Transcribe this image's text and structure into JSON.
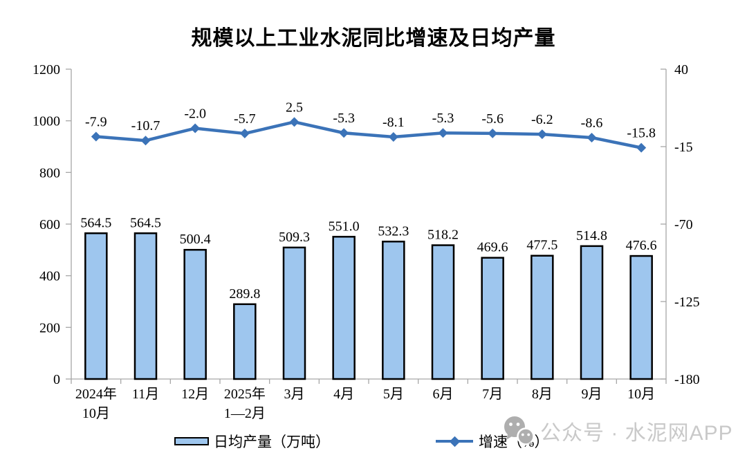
{
  "title": "规模以上工业水泥同比增速及日均产量",
  "chart_data": {
    "type": "combo",
    "title": "规模以上工业水泥同比增速及日均产量",
    "categories": [
      "2024年\n10月",
      "11月",
      "12月",
      "2025年\n1—2月",
      "3月",
      "4月",
      "5月",
      "6月",
      "7月",
      "8月",
      "9月",
      "10月"
    ],
    "series": [
      {
        "name": "日均产量（万吨）",
        "type": "bar",
        "axis": "left",
        "values": [
          564.5,
          564.5,
          500.4,
          289.8,
          509.3,
          551.0,
          532.3,
          518.2,
          469.6,
          477.5,
          514.8,
          476.6
        ],
        "fill": "#9EC6EE",
        "stroke": "#000000"
      },
      {
        "name": "增速（%）",
        "type": "line",
        "axis": "right",
        "values": [
          -7.9,
          -10.7,
          -2.0,
          -5.7,
          2.5,
          -5.3,
          -8.1,
          -5.3,
          -5.6,
          -6.2,
          -8.6,
          -15.8
        ],
        "color": "#3B73B8",
        "marker": "diamond"
      }
    ],
    "left_axis": {
      "min": 0,
      "max": 1200,
      "ticks": [
        0,
        200,
        400,
        600,
        800,
        1000,
        1200
      ]
    },
    "right_axis": {
      "min": -180,
      "max": 40,
      "ticks": [
        40,
        -15,
        -70,
        -125,
        -180
      ]
    },
    "grid": false,
    "data_labels": true,
    "legend_position": "bottom"
  },
  "legend": {
    "bar_label": "日均产量（万吨）",
    "line_label": "增速（%）"
  },
  "watermark": {
    "text": "公众号 · 水泥网APP",
    "icon": "wechat-icon"
  }
}
